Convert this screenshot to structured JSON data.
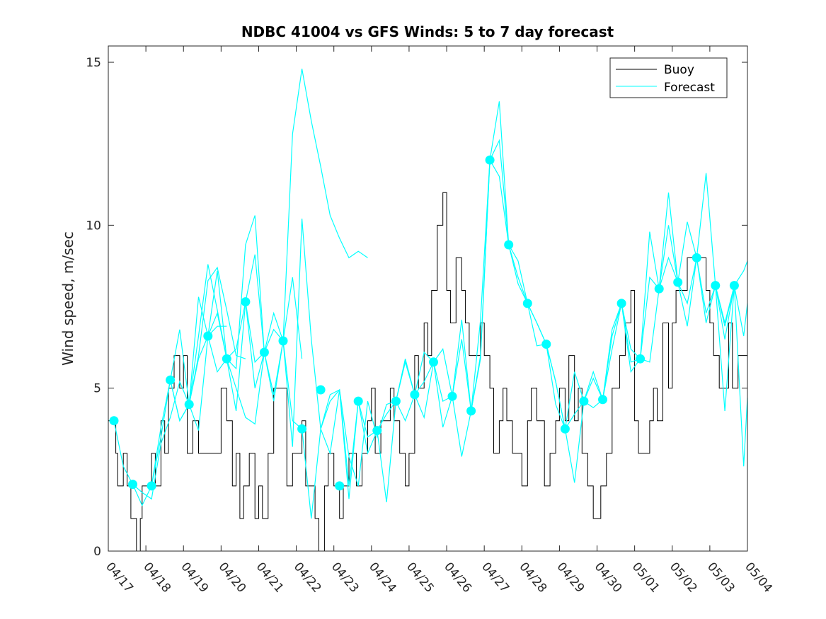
{
  "chart_data": {
    "type": "line",
    "title": "NDBC 41004 vs GFS Winds: 5 to 7 day forecast",
    "xlabel": "",
    "ylabel": "Wind speed, m/sec",
    "xlim": [
      "04/17",
      "05/04"
    ],
    "ylim": [
      0,
      15.5
    ],
    "x_tick_labels": [
      "04/17",
      "04/18",
      "04/19",
      "04/20",
      "04/21",
      "04/22",
      "04/23",
      "04/24",
      "04/25",
      "04/26",
      "04/27",
      "04/28",
      "04/29",
      "04/30",
      "05/01",
      "05/02",
      "05/03",
      "05/04"
    ],
    "y_ticks": [
      0,
      5,
      10,
      15
    ],
    "legend": {
      "position": "top-right",
      "entries": [
        "Buoy",
        "Forecast"
      ]
    },
    "colors": {
      "buoy": "#000000",
      "forecast": "#00ffff"
    },
    "buoy": {
      "name": "Buoy",
      "x": [
        0,
        0.2,
        0.25,
        0.4,
        0.5,
        0.6,
        0.75,
        0.85,
        0.9,
        1,
        1.15,
        1.25,
        1.4,
        1.5,
        1.6,
        1.75,
        1.9,
        2,
        2.1,
        2.25,
        2.4,
        2.5,
        2.6,
        2.75,
        2.9,
        3,
        3.15,
        3.3,
        3.4,
        3.5,
        3.6,
        3.75,
        3.9,
        4,
        4.1,
        4.25,
        4.4,
        4.5,
        4.6,
        4.75,
        4.9,
        5,
        5.15,
        5.25,
        5.5,
        5.6,
        5.75,
        5.85,
        6,
        6.15,
        6.25,
        6.4,
        6.5,
        6.6,
        6.75,
        6.9,
        7,
        7.1,
        7.25,
        7.4,
        7.5,
        7.6,
        7.75,
        7.9,
        8,
        8.15,
        8.25,
        8.4,
        8.5,
        8.6,
        8.75,
        8.9,
        9,
        9.1,
        9.25,
        9.4,
        9.5,
        9.6,
        9.75,
        9.9,
        10,
        10.15,
        10.25,
        10.4,
        10.5,
        10.6,
        10.75,
        10.9,
        11,
        11.15,
        11.25,
        11.4,
        11.5,
        11.6,
        11.75,
        11.9,
        12,
        12.15,
        12.25,
        12.4,
        12.5,
        12.6,
        12.75,
        12.9,
        13,
        13.1,
        13.25,
        13.4,
        13.5,
        13.6,
        13.75,
        13.9,
        14,
        14.1,
        14.25,
        14.4,
        14.5,
        14.6,
        14.75,
        14.9,
        15,
        15.1,
        15.25,
        15.4,
        15.5,
        15.6,
        15.75,
        15.9,
        16,
        16.1,
        16.25,
        16.4,
        16.5,
        16.6,
        16.75,
        16.9,
        17
      ],
      "values": [
        4,
        3,
        2,
        3,
        2,
        1,
        0,
        1,
        2,
        2,
        3,
        2,
        4,
        3,
        5,
        6,
        5,
        6,
        3,
        4,
        3,
        3,
        3,
        3,
        3,
        5,
        4,
        2,
        3,
        1,
        2,
        3,
        1,
        2,
        1,
        3,
        5,
        5,
        5,
        2,
        3,
        3,
        4,
        2,
        1,
        0,
        2,
        3,
        2,
        1,
        2,
        3,
        3,
        2,
        3,
        4,
        5,
        3,
        4,
        4,
        5,
        4,
        3,
        2,
        3,
        6,
        5,
        7,
        6,
        8,
        10,
        11,
        8,
        7,
        9,
        8,
        7,
        6,
        6,
        7,
        6,
        5,
        3,
        4,
        5,
        4,
        3,
        3,
        2,
        4,
        5,
        4,
        4,
        2,
        3,
        4,
        5,
        4,
        6,
        4,
        5,
        3,
        2,
        1,
        1,
        2,
        3,
        5,
        5,
        6,
        7,
        8,
        4,
        3,
        3,
        4,
        5,
        4,
        7,
        5,
        7,
        8,
        8,
        9,
        9,
        9,
        9,
        8,
        7,
        6,
        5,
        5,
        7,
        5,
        6,
        6,
        7
      ],
      "note": ""
    },
    "forecast_markers": {
      "name": "Forecast",
      "x": [
        0.15,
        0.65,
        1.15,
        1.65,
        2.15,
        2.65,
        3.15,
        3.65,
        4.15,
        4.65,
        5.15,
        5.65,
        6.15,
        6.65,
        7.15,
        7.65,
        8.15,
        8.65,
        9.15,
        9.65,
        10.15,
        10.65,
        11.15,
        11.65,
        12.15,
        12.65,
        13.15,
        13.65,
        14.15,
        14.65,
        15.15,
        15.65,
        16.15,
        16.65
      ],
      "values": [
        4.0,
        2.05,
        2.0,
        5.25,
        4.5,
        6.6,
        5.9,
        7.65,
        6.1,
        6.45,
        3.75,
        4.95,
        2.0,
        4.6,
        3.7,
        4.6,
        4.8,
        5.8,
        4.75,
        4.3,
        12.0,
        9.4,
        7.6,
        6.35,
        3.75,
        4.6,
        4.65,
        7.6,
        5.9,
        8.05,
        8.25,
        9.0,
        8.15,
        8.15
      ]
    },
    "forecast_series": [
      {
        "x": [
          0.15,
          0.4,
          0.65,
          0.9,
          1.15,
          1.4,
          1.65,
          1.9,
          2.15,
          2.4,
          2.65,
          2.9,
          3.15
        ],
        "values": [
          4.0,
          2.6,
          2.05,
          1.4,
          2.0,
          3.5,
          5.25,
          6.8,
          4.5,
          5.9,
          6.6,
          6.9,
          6.9
        ]
      },
      {
        "x": [
          0.65,
          0.9,
          1.15,
          1.4,
          1.65,
          1.9,
          2.15,
          2.4,
          2.65,
          2.9,
          3.15,
          3.4,
          3.65
        ],
        "values": [
          2.05,
          1.8,
          1.6,
          3.3,
          4.1,
          5.2,
          4.5,
          6.0,
          8.3,
          8.7,
          7.4,
          6.0,
          5.9
        ]
      },
      {
        "x": [
          1.15,
          1.4,
          1.65,
          1.9,
          2.15,
          2.4,
          2.65,
          2.9,
          3.15,
          3.4,
          3.65,
          3.9,
          4.15
        ],
        "values": [
          2.0,
          3.8,
          5.25,
          4.0,
          4.5,
          7.8,
          6.6,
          8.6,
          5.9,
          6.2,
          7.65,
          5.0,
          6.1
        ]
      },
      {
        "x": [
          1.65,
          1.9,
          2.15,
          2.4,
          2.65,
          2.9,
          3.15,
          3.4,
          3.65,
          3.9,
          4.15,
          4.4,
          4.65
        ],
        "values": [
          5.25,
          4.0,
          4.5,
          6.6,
          8.8,
          7.4,
          5.9,
          5.6,
          9.4,
          10.3,
          6.1,
          7.3,
          6.45
        ]
      },
      {
        "x": [
          2.15,
          2.4,
          2.65,
          2.9,
          3.15,
          3.4,
          3.65,
          3.9,
          4.15,
          4.4,
          4.65,
          4.9,
          5.15
        ],
        "values": [
          4.5,
          3.7,
          6.6,
          7.3,
          5.9,
          4.3,
          7.65,
          9.1,
          6.1,
          6.8,
          6.45,
          8.4,
          5.9
        ]
      },
      {
        "x": [
          2.65,
          2.9,
          3.15,
          3.4,
          3.65,
          3.9,
          4.15,
          4.4,
          4.65,
          4.9,
          5.15,
          5.4,
          5.65,
          5.9,
          6.15,
          6.4,
          6.65,
          6.9
        ],
        "values": [
          6.6,
          5.5,
          5.9,
          5.0,
          4.1,
          3.9,
          6.1,
          4.8,
          6.45,
          12.8,
          14.8,
          13.2,
          11.8,
          10.3,
          9.6,
          9.0,
          9.2,
          9.0
        ]
      },
      {
        "x": [
          3.65,
          3.9,
          4.15,
          4.4,
          4.65,
          4.9,
          5.15,
          5.4,
          5.65,
          5.9,
          6.15,
          6.4,
          6.65
        ],
        "values": [
          7.65,
          5.8,
          6.1,
          4.6,
          6.45,
          3.2,
          10.2,
          6.5,
          3.75,
          4.6,
          4.95,
          1.6,
          4.6
        ]
      },
      {
        "x": [
          4.65,
          4.9,
          5.15,
          5.4,
          5.65,
          5.9,
          6.15,
          6.4,
          6.65,
          6.9,
          7.15,
          7.4,
          7.65
        ],
        "values": [
          6.45,
          4.0,
          3.75,
          1.0,
          3.75,
          4.8,
          4.95,
          2.9,
          2.0,
          4.6,
          3.5,
          4.5,
          4.6
        ]
      },
      {
        "x": [
          5.65,
          5.9,
          6.15,
          6.4,
          6.65,
          6.9,
          7.15,
          7.4,
          7.65,
          7.9,
          8.15,
          8.4,
          8.65
        ],
        "values": [
          3.75,
          3.0,
          4.95,
          2.0,
          4.6,
          3.0,
          3.7,
          1.5,
          4.6,
          5.8,
          4.8,
          6.1,
          5.8
        ]
      },
      {
        "x": [
          6.65,
          6.9,
          7.15,
          7.4,
          7.65,
          7.9,
          8.15,
          8.4,
          8.65,
          8.9,
          9.15,
          9.4,
          9.65
        ],
        "values": [
          4.6,
          3.5,
          3.7,
          4.2,
          4.6,
          5.9,
          4.8,
          4.1,
          5.8,
          3.8,
          4.75,
          6.5,
          4.3
        ]
      },
      {
        "x": [
          7.65,
          7.9,
          8.15,
          8.4,
          8.65,
          8.9,
          9.15,
          9.4,
          9.65,
          9.9,
          10.15,
          10.4,
          10.65
        ],
        "values": [
          4.6,
          4.0,
          4.8,
          5.2,
          5.8,
          4.6,
          4.75,
          2.9,
          4.3,
          7.1,
          12.0,
          13.8,
          9.4
        ]
      },
      {
        "x": [
          8.65,
          8.9,
          9.15,
          9.4,
          9.65,
          9.9,
          10.15,
          10.4,
          10.65,
          10.9,
          11.15,
          11.4,
          11.65
        ],
        "values": [
          5.8,
          6.2,
          4.75,
          7.1,
          4.3,
          6.0,
          12.0,
          12.6,
          9.4,
          8.9,
          7.6,
          7.0,
          6.35
        ]
      },
      {
        "x": [
          9.65,
          9.9,
          10.15,
          10.4,
          10.65,
          10.9,
          11.15,
          11.4,
          11.65,
          11.9,
          12.15,
          12.4,
          12.65
        ],
        "values": [
          4.3,
          5.9,
          12.0,
          11.5,
          9.4,
          8.4,
          7.6,
          6.3,
          6.35,
          4.5,
          3.75,
          2.1,
          4.6
        ]
      },
      {
        "x": [
          10.65,
          10.9,
          11.15,
          11.4,
          11.65,
          11.9,
          12.15,
          12.4,
          12.65,
          12.9,
          13.15,
          13.4,
          13.65
        ],
        "values": [
          9.4,
          8.2,
          7.6,
          7.0,
          6.35,
          5.2,
          3.75,
          4.2,
          4.6,
          5.5,
          4.65,
          6.2,
          7.6
        ]
      },
      {
        "x": [
          11.65,
          11.9,
          12.15,
          12.4,
          12.65,
          12.9,
          13.15,
          13.4,
          13.65,
          13.9,
          14.15,
          14.4,
          14.65
        ],
        "values": [
          6.35,
          5.2,
          3.75,
          5.5,
          4.6,
          4.4,
          4.65,
          6.8,
          7.6,
          5.5,
          5.9,
          5.8,
          8.05
        ]
      },
      {
        "x": [
          12.65,
          12.9,
          13.15,
          13.4,
          13.65,
          13.9,
          14.15,
          14.4,
          14.65,
          14.9,
          15.15,
          15.4,
          15.65
        ],
        "values": [
          4.6,
          5.3,
          4.65,
          6.6,
          7.6,
          6.2,
          5.9,
          9.8,
          8.05,
          10.0,
          8.25,
          6.9,
          9.0
        ]
      },
      {
        "x": [
          13.65,
          13.9,
          14.15,
          14.4,
          14.65,
          14.9,
          15.15,
          15.4,
          15.65,
          15.9,
          16.15,
          16.4,
          16.65
        ],
        "values": [
          7.6,
          5.8,
          5.9,
          8.4,
          8.05,
          11.0,
          8.25,
          10.1,
          9.0,
          11.6,
          8.15,
          6.5,
          8.15
        ]
      },
      {
        "x": [
          14.65,
          14.9,
          15.15,
          15.4,
          15.65,
          15.9,
          16.15,
          16.4,
          16.65,
          16.9,
          17.0
        ],
        "values": [
          8.05,
          9.0,
          8.25,
          7.6,
          9.0,
          7.0,
          8.15,
          4.3,
          8.15,
          6.6,
          7.6
        ]
      },
      {
        "x": [
          15.65,
          15.9,
          16.15,
          16.4,
          16.65,
          16.9,
          17.0
        ],
        "values": [
          9.0,
          7.3,
          8.15,
          7.0,
          8.15,
          2.6,
          4.7
        ]
      },
      {
        "x": [
          16.15,
          16.4,
          16.65,
          16.9,
          17.0
        ],
        "values": [
          8.15,
          6.9,
          8.15,
          8.6,
          8.9
        ]
      }
    ]
  }
}
